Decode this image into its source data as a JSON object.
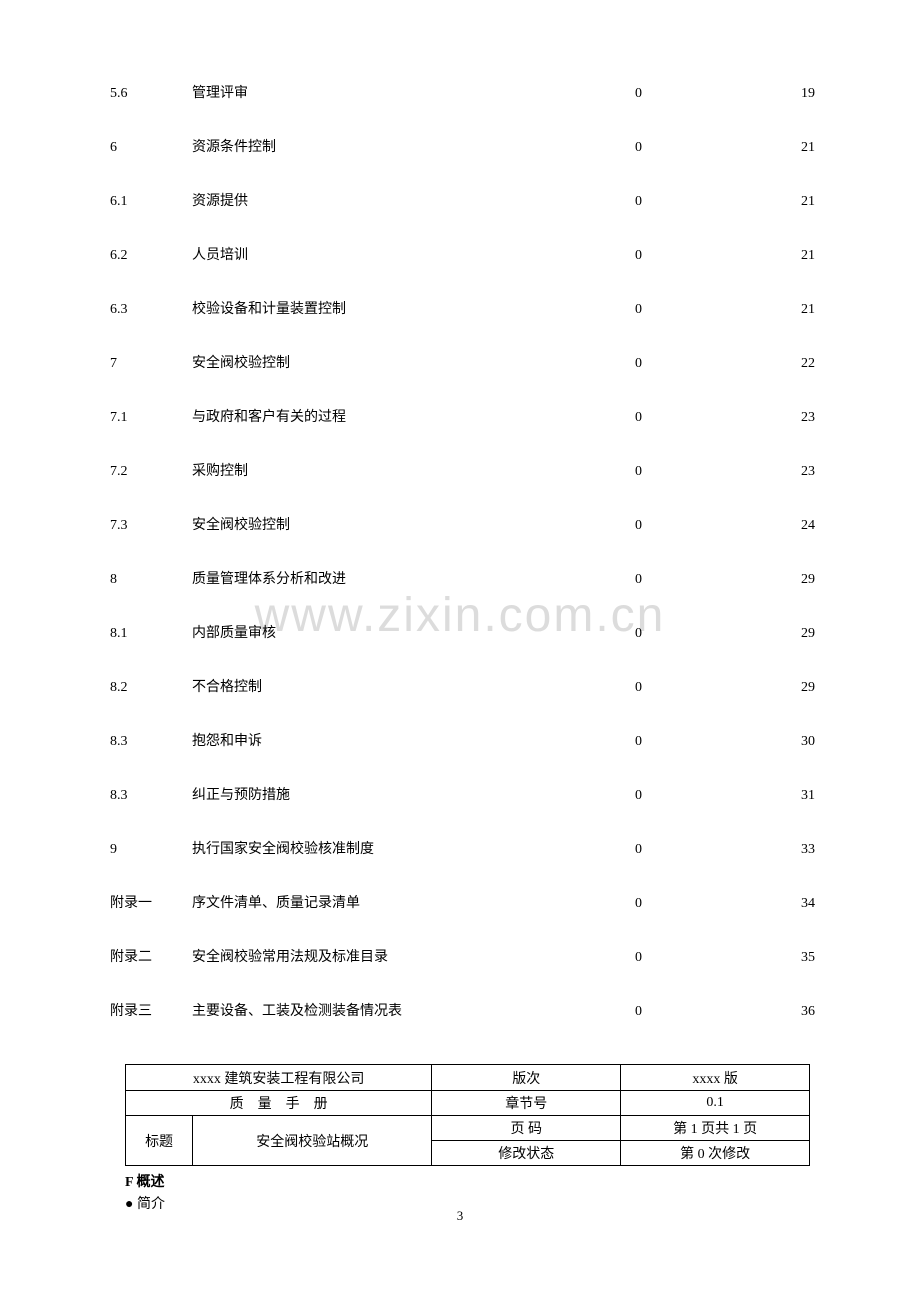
{
  "watermark_text": "www.zixin.com.cn",
  "toc": [
    {
      "section": "5.6",
      "title": "管理评审",
      "revision": "0",
      "page": "19"
    },
    {
      "section": "6",
      "title": "资源条件控制",
      "revision": "0",
      "page": "21"
    },
    {
      "section": "6.1",
      "title": "资源提供",
      "revision": "0",
      "page": "21"
    },
    {
      "section": "6.2",
      "title": "人员培训",
      "revision": "0",
      "page": "21"
    },
    {
      "section": "6.3",
      "title": "校验设备和计量装置控制",
      "revision": "0",
      "page": "21"
    },
    {
      "section": "7",
      "title": "安全阀校验控制",
      "revision": "0",
      "page": "22"
    },
    {
      "section": "7.1",
      "title": "与政府和客户有关的过程",
      "revision": "0",
      "page": "23"
    },
    {
      "section": "7.2",
      "title": "采购控制",
      "revision": "0",
      "page": "23"
    },
    {
      "section": "7.3",
      "title": "安全阀校验控制",
      "revision": "0",
      "page": "24"
    },
    {
      "section": "8",
      "title": "质量管理体系分析和改进",
      "revision": "0",
      "page": "29"
    },
    {
      "section": "8.1",
      "title": "内部质量审核",
      "revision": "0",
      "page": "29"
    },
    {
      "section": "8.2",
      "title": "不合格控制",
      "revision": "0",
      "page": "29"
    },
    {
      "section": "8.3",
      "title": "抱怨和申诉",
      "revision": "0",
      "page": "30"
    },
    {
      "section": "8.3",
      "title": "纠正与预防措施",
      "revision": "0",
      "page": "31"
    },
    {
      "section": "9",
      "title": "执行国家安全阀校验核准制度",
      "revision": "0",
      "page": "33"
    },
    {
      "section": "附录一",
      "title": "序文件清单、质量记录清单",
      "revision": "0",
      "page": "34"
    },
    {
      "section": "附录二",
      "title": "安全阀校验常用法规及标准目录",
      "revision": "0",
      "page": "35"
    },
    {
      "section": "附录三",
      "title": "主要设备、工装及检测装备情况表",
      "revision": "0",
      "page": "36"
    }
  ],
  "header": {
    "company": "xxxx 建筑安装工程有限公司",
    "manual": "质量手册",
    "title_label": "标题",
    "title_value": "安全阀校验站概况",
    "labels": {
      "edition": "版次",
      "chapter": "章节号",
      "page": "页 码",
      "revision": "修改状态"
    },
    "values": {
      "edition": "xxxx 版",
      "chapter": "0.1",
      "page": "第 1 页共 1 页",
      "revision": "第 0 次修改"
    }
  },
  "body": {
    "overview_label": "F 概述",
    "intro_label": "● 简介"
  },
  "page_number": "3"
}
